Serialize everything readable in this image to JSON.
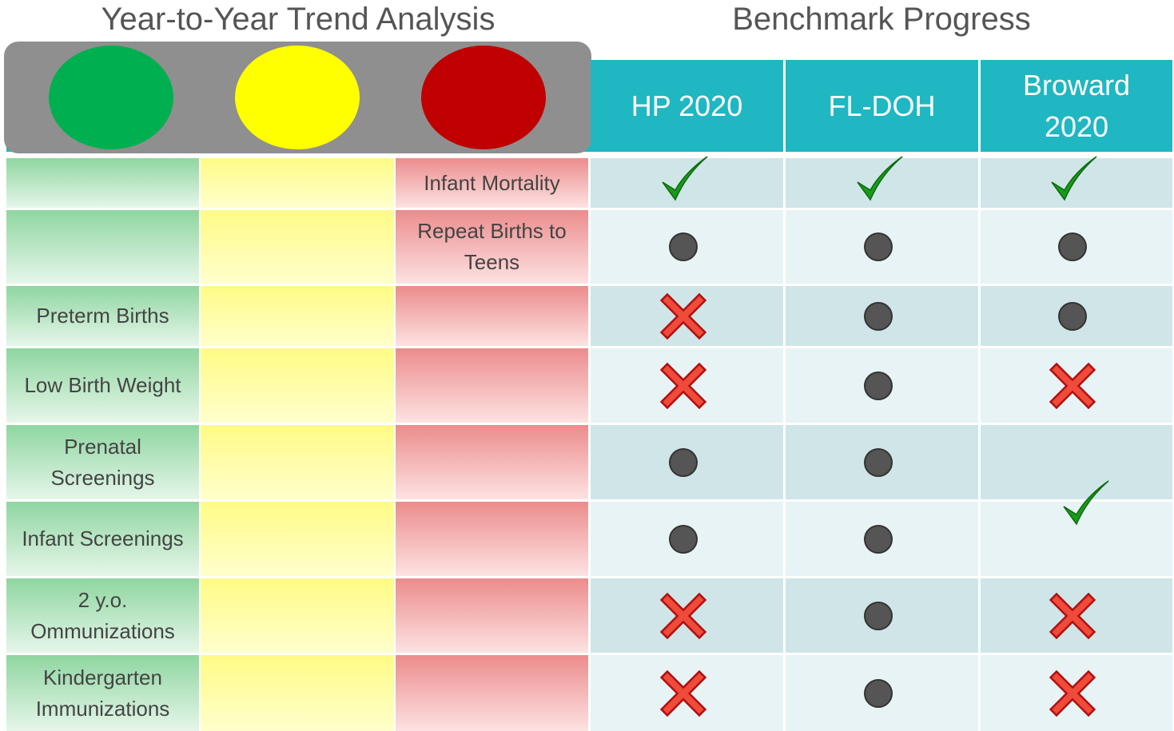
{
  "headers": {
    "trend": "Year-to-Year Trend Analysis",
    "benchmark": "Benchmark Progress"
  },
  "benchmark_columns": [
    "HP 2020",
    "FL-DOH",
    "Broward 2020"
  ],
  "rows": [
    "Infant Mortality",
    "Repeat Births to Teens",
    "Preterm Births",
    "Low Birth Weight",
    "Prenatal Screenings",
    "Infant Screenings",
    "2 y.o. Ommunizations",
    "Kindergarten Immunizations"
  ]
}
